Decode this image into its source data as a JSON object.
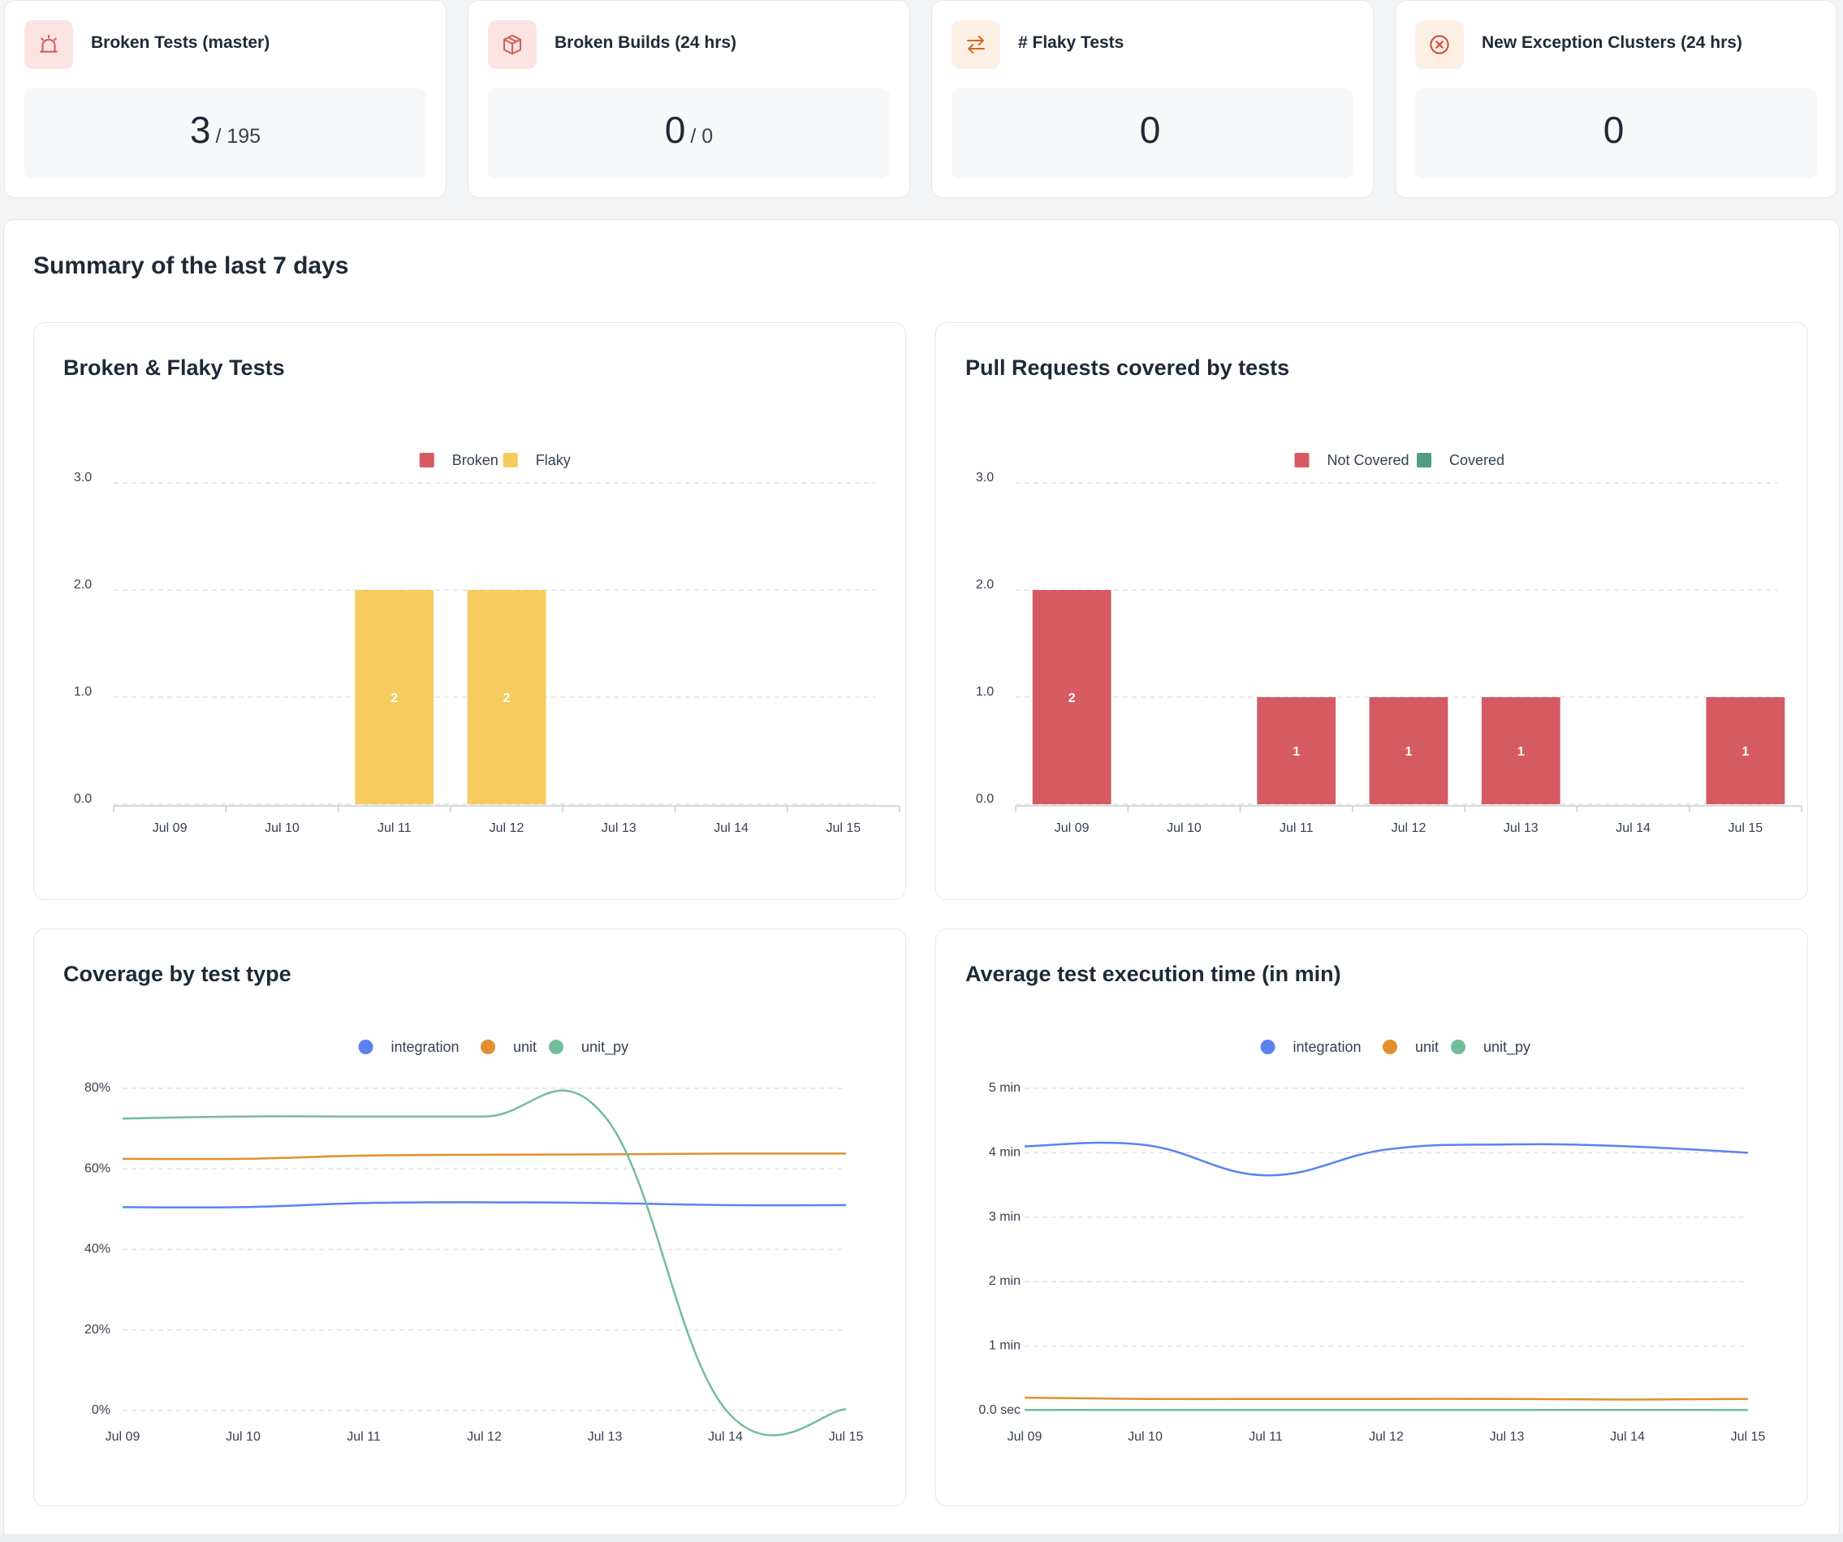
{
  "stats": [
    {
      "title": "Broken Tests (master)",
      "value": "3",
      "total": "/ 195",
      "icon": "alarm-icon",
      "icon_bg": "#fbe3e3",
      "icon_color": "#d45a5a"
    },
    {
      "title": "Broken Builds (24 hrs)",
      "value": "0",
      "total": "/ 0",
      "icon": "package-icon",
      "icon_bg": "#fbe3e3",
      "icon_color": "#d45a5a"
    },
    {
      "title": "# Flaky Tests",
      "value": "0",
      "total": "",
      "icon": "swap-arrows-icon",
      "icon_bg": "#fcf0e4",
      "icon_color": "#d2691e"
    },
    {
      "title": "New Exception Clusters (24 hrs)",
      "value": "0",
      "total": "",
      "icon": "x-circle-icon",
      "icon_bg": "#fcf0e4",
      "icon_color": "#d2691e"
    }
  ],
  "summary": {
    "title": "Summary of the last 7 days"
  },
  "chart_data": [
    {
      "type": "bar",
      "title": "Broken & Flaky Tests",
      "categories": [
        "Jul 09",
        "Jul 10",
        "Jul 11",
        "Jul 12",
        "Jul 13",
        "Jul 14",
        "Jul 15"
      ],
      "series": [
        {
          "name": "Broken",
          "color": "#d65a62",
          "values": [
            0,
            0,
            0,
            0,
            0,
            0,
            0
          ]
        },
        {
          "name": "Flaky",
          "color": "#f6cb5f",
          "values": [
            0,
            0,
            2,
            2,
            0,
            0,
            0
          ]
        }
      ],
      "stacked": true,
      "ylim": [
        0,
        3
      ],
      "yticks": [
        "0.0",
        "1.0",
        "2.0",
        "3.0"
      ],
      "grid": true,
      "legend": "top"
    },
    {
      "type": "bar",
      "title": "Pull Requests covered by tests",
      "categories": [
        "Jul 09",
        "Jul 10",
        "Jul 11",
        "Jul 12",
        "Jul 13",
        "Jul 14",
        "Jul 15"
      ],
      "series": [
        {
          "name": "Not Covered",
          "color": "#d65a62",
          "values": [
            2,
            0,
            1,
            1,
            1,
            0,
            1
          ]
        },
        {
          "name": "Covered",
          "color": "#4f9e7e",
          "values": [
            0,
            0,
            0,
            0,
            0,
            0,
            0
          ]
        }
      ],
      "stacked": true,
      "ylim": [
        0,
        3
      ],
      "yticks": [
        "0.0",
        "1.0",
        "2.0",
        "3.0"
      ],
      "grid": true,
      "legend": "top"
    },
    {
      "type": "line",
      "title": "Coverage by test type",
      "x": [
        "Jul 09",
        "Jul 10",
        "Jul 11",
        "Jul 12",
        "Jul 13",
        "Jul 14",
        "Jul 15"
      ],
      "series": [
        {
          "name": "integration",
          "color": "#5b82f0",
          "values": [
            50.5,
            50.5,
            51.5,
            51.7,
            51.5,
            51,
            51
          ]
        },
        {
          "name": "unit",
          "color": "#e0902f",
          "values": [
            62.5,
            62.5,
            63.3,
            63.5,
            63.6,
            63.8,
            63.8
          ]
        },
        {
          "name": "unit_py",
          "color": "#72bd9c",
          "values": [
            72.5,
            73,
            73,
            73,
            73,
            0.3,
            0.3
          ]
        }
      ],
      "ylim": [
        0,
        80
      ],
      "yticks": [
        "0%",
        "20%",
        "40%",
        "60%",
        "80%"
      ],
      "grid": true,
      "legend": "top"
    },
    {
      "type": "line",
      "title": "Average test execution time (in min)",
      "x": [
        "Jul 09",
        "Jul 10",
        "Jul 11",
        "Jul 12",
        "Jul 13",
        "Jul 14",
        "Jul 15"
      ],
      "series": [
        {
          "name": "integration",
          "color": "#5b82f0",
          "values": [
            4.1,
            4.12,
            3.65,
            4.05,
            4.13,
            4.1,
            4.0
          ]
        },
        {
          "name": "unit",
          "color": "#e0902f",
          "values": [
            0.2,
            0.18,
            0.18,
            0.18,
            0.18,
            0.17,
            0.18
          ]
        },
        {
          "name": "unit_py",
          "color": "#72bd9c",
          "values": [
            0.01,
            0.01,
            0.01,
            0.01,
            0.01,
            0.01,
            0.01
          ]
        }
      ],
      "ylim": [
        0,
        5
      ],
      "yticks": [
        "0.0 sec",
        "1 min",
        "2 min",
        "3 min",
        "4 min",
        "5 min"
      ],
      "grid": true,
      "legend": "top"
    }
  ]
}
